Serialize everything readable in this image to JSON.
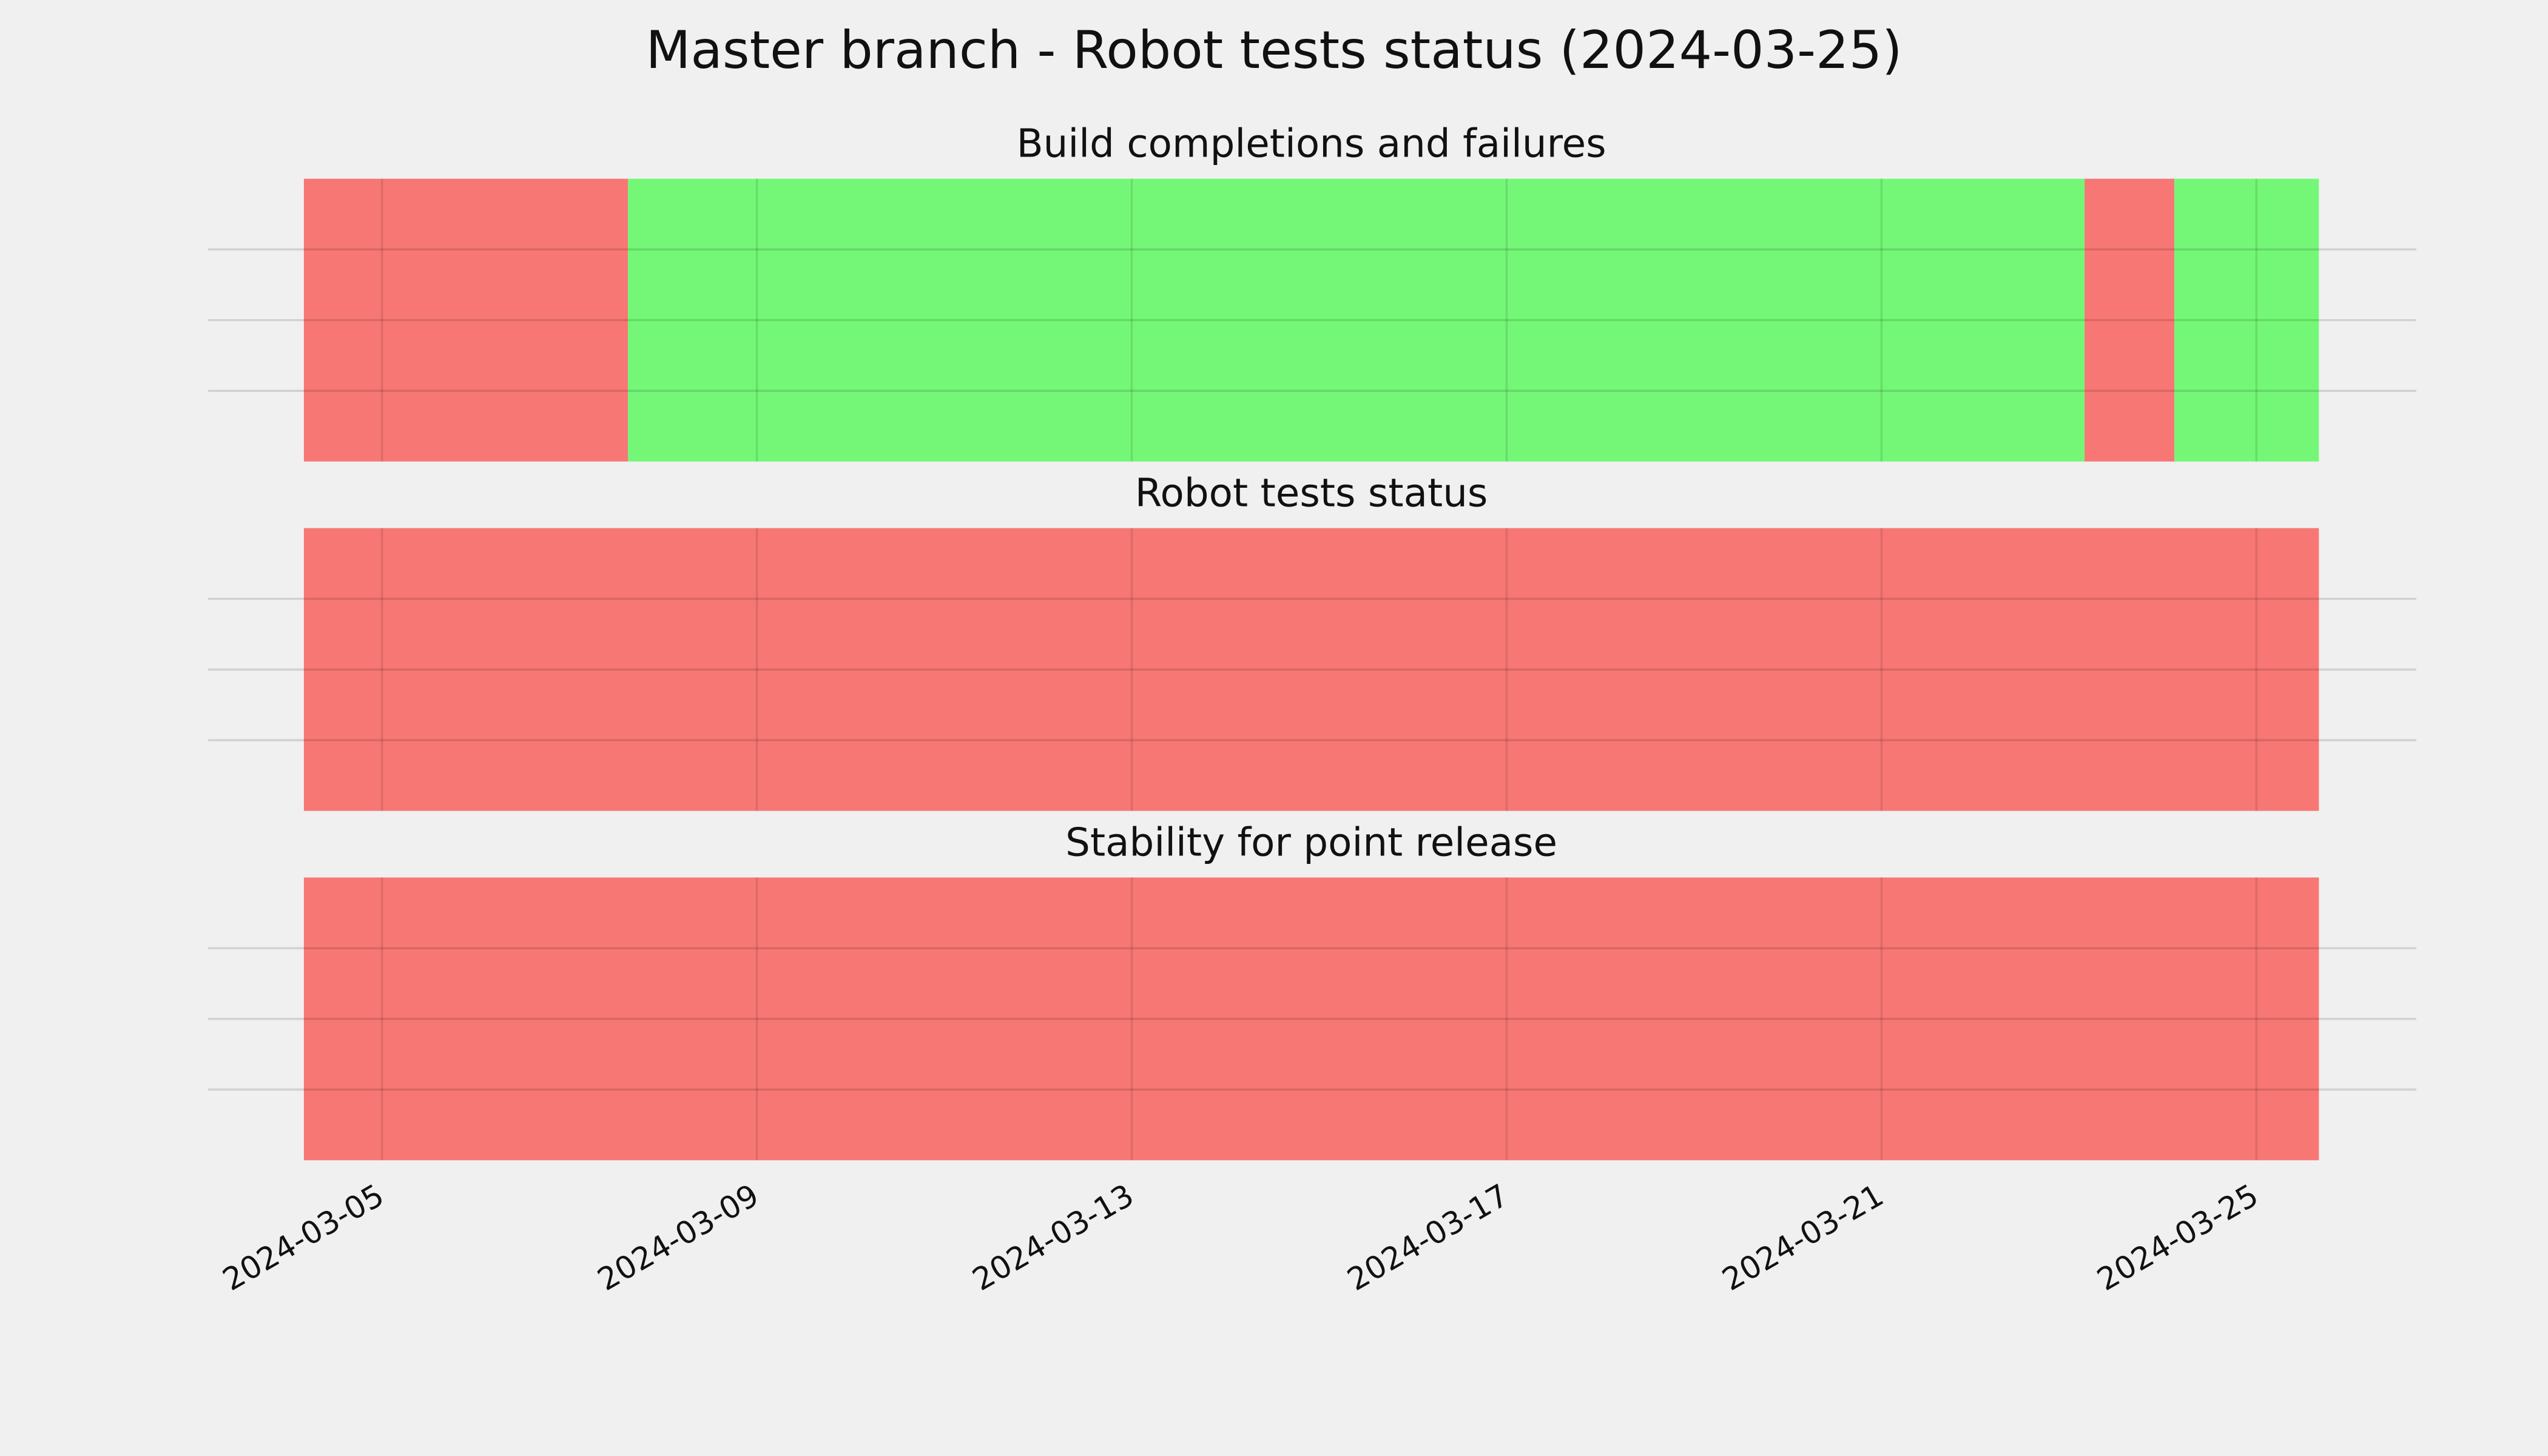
{
  "chart_data": {
    "type": "timeline",
    "title": "Master branch - Robot tests status (2024-03-25)",
    "xlim": [
      "2024-03-04T04:00",
      "2024-03-25T16:00"
    ],
    "xticks": [
      "2024-03-05",
      "2024-03-09",
      "2024-03-13",
      "2024-03-17",
      "2024-03-21",
      "2024-03-25"
    ],
    "grid": true,
    "panels": [
      {
        "title": "Build completions and failures",
        "segments": [
          {
            "start": "2024-03-04T04:00",
            "end": "2024-03-07T15:00",
            "color": "#f77774"
          },
          {
            "start": "2024-03-07T15:00",
            "end": "2024-03-23T04:00",
            "color": "#74f777"
          },
          {
            "start": "2024-03-23T04:00",
            "end": "2024-03-24T03:00",
            "color": "#f77774"
          },
          {
            "start": "2024-03-24T03:00",
            "end": "2024-03-25T16:00",
            "color": "#74f777"
          }
        ]
      },
      {
        "title": "Robot tests status",
        "segments": [
          {
            "start": "2024-03-04T04:00",
            "end": "2024-03-25T16:00",
            "color": "#f77774"
          }
        ]
      },
      {
        "title": "Stability for point release",
        "segments": [
          {
            "start": "2024-03-04T04:00",
            "end": "2024-03-25T16:00",
            "color": "#f77774"
          }
        ]
      }
    ]
  }
}
